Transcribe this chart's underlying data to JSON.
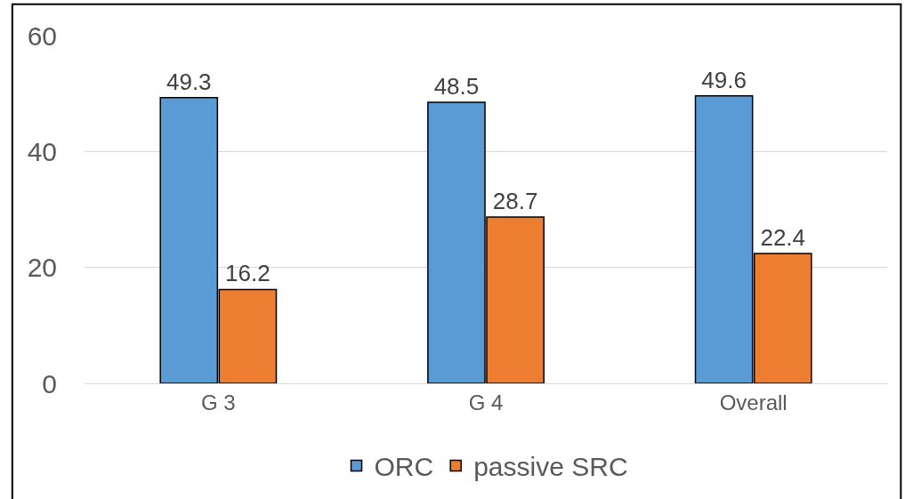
{
  "chart_data": {
    "type": "bar",
    "categories": [
      "G 3",
      "G 4",
      "Overall"
    ],
    "series": [
      {
        "name": "ORC",
        "color": "#5b9bd5",
        "values": [
          49.3,
          48.5,
          49.6
        ]
      },
      {
        "name": "passive SRC",
        "color": "#ed7d31",
        "values": [
          16.2,
          28.7,
          22.4
        ]
      }
    ],
    "ylim": [
      0,
      60
    ],
    "yticks": [
      0,
      20,
      40,
      60
    ],
    "grid": "y",
    "legend": "bottom",
    "data_labels": true
  }
}
